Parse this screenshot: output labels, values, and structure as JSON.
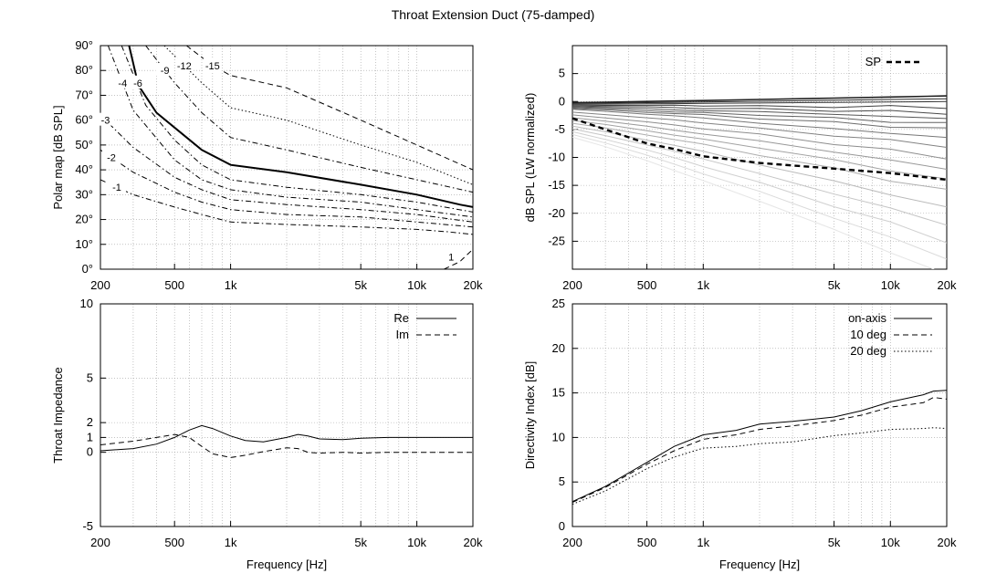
{
  "title": "Throat Extension Duct (75-damped)",
  "colors": {
    "axis": "#000000",
    "grid": "#a0a0a0",
    "series": "#000000"
  },
  "chart_data": [
    {
      "id": "polar",
      "type": "line",
      "subtype": "contour",
      "ylabel": "Polar map [dB SPL]",
      "xlabel": "",
      "xscale": "log",
      "xlim": [
        200,
        20000
      ],
      "ylim": [
        0,
        90
      ],
      "grid": true,
      "xticks": [
        200,
        500,
        1000,
        5000,
        10000,
        20000
      ],
      "xtick_labels": [
        "200",
        "500",
        "1k",
        "5k",
        "10k",
        "20k"
      ],
      "yticks": [
        0,
        10,
        20,
        30,
        40,
        50,
        60,
        70,
        80,
        90
      ],
      "ytick_labels": [
        "0°",
        "10°",
        "20°",
        "30°",
        "40°",
        "50°",
        "60°",
        "70°",
        "80°",
        "90°"
      ],
      "series": [
        {
          "level": "-1",
          "dash": "dashdot",
          "width": 1,
          "points": [
            [
              200,
              36
            ],
            [
              300,
              30
            ],
            [
              500,
              25
            ],
            [
              700,
              22
            ],
            [
              1000,
              19
            ],
            [
              2000,
              18
            ],
            [
              5000,
              17
            ],
            [
              10000,
              16
            ],
            [
              15000,
              15
            ],
            [
              20000,
              14
            ]
          ]
        },
        {
          "level": "-2",
          "dash": "dashdot",
          "width": 1,
          "points": [
            [
              200,
              48
            ],
            [
              300,
              39
            ],
            [
              500,
              31
            ],
            [
              700,
              27
            ],
            [
              1000,
              24
            ],
            [
              2000,
              22
            ],
            [
              5000,
              21
            ],
            [
              10000,
              19
            ],
            [
              20000,
              17
            ]
          ]
        },
        {
          "level": "-3",
          "dash": "dashdot",
          "width": 1,
          "points": [
            [
              200,
              62
            ],
            [
              300,
              49
            ],
            [
              500,
              37
            ],
            [
              700,
              32
            ],
            [
              1000,
              28
            ],
            [
              2000,
              26
            ],
            [
              5000,
              24
            ],
            [
              10000,
              22
            ],
            [
              20000,
              19
            ]
          ]
        },
        {
          "level": "-4",
          "dash": "dashdot",
          "width": 1,
          "points": [
            [
              220,
              90
            ],
            [
              300,
              64
            ],
            [
              500,
              44
            ],
            [
              700,
              36
            ],
            [
              1000,
              32
            ],
            [
              2000,
              29
            ],
            [
              5000,
              27
            ],
            [
              10000,
              24
            ],
            [
              20000,
              21
            ]
          ]
        },
        {
          "level": "-5",
          "dash": "dashdot",
          "width": 1,
          "points": [
            [
              260,
              90
            ],
            [
              350,
              66
            ],
            [
              500,
              52
            ],
            [
              700,
              42
            ],
            [
              1000,
              36
            ],
            [
              2000,
              33
            ],
            [
              5000,
              30
            ],
            [
              10000,
              27
            ],
            [
              20000,
              23
            ]
          ]
        },
        {
          "level": "-6",
          "dash": "solid",
          "width": 2,
          "points": [
            [
              285,
              90
            ],
            [
              320,
              74
            ],
            [
              400,
              63
            ],
            [
              500,
              57
            ],
            [
              700,
              48
            ],
            [
              1000,
              42
            ],
            [
              2000,
              39
            ],
            [
              5000,
              34
            ],
            [
              10000,
              30
            ],
            [
              17000,
              26
            ],
            [
              20000,
              25
            ]
          ]
        },
        {
          "level": "-9",
          "dash": "dashdot",
          "width": 1,
          "points": [
            [
              350,
              90
            ],
            [
              500,
              75
            ],
            [
              700,
              63
            ],
            [
              1000,
              53
            ],
            [
              2000,
              48
            ],
            [
              5000,
              41
            ],
            [
              10000,
              36
            ],
            [
              20000,
              31
            ]
          ]
        },
        {
          "level": "-12",
          "dash": "dotted",
          "width": 1,
          "points": [
            [
              440,
              90
            ],
            [
              700,
              75
            ],
            [
              1000,
              65
            ],
            [
              2000,
              60
            ],
            [
              5000,
              50
            ],
            [
              10000,
              43
            ],
            [
              20000,
              34
            ]
          ]
        },
        {
          "level": "-15",
          "dash": "dashed",
          "width": 1,
          "points": [
            [
              580,
              90
            ],
            [
              800,
              82
            ],
            [
              1000,
              78
            ],
            [
              2000,
              73
            ],
            [
              5000,
              60
            ],
            [
              10000,
              50
            ],
            [
              20000,
              40
            ]
          ]
        },
        {
          "level": "1",
          "dash": "dashed",
          "width": 1,
          "points": [
            [
              14000,
              0
            ],
            [
              17000,
              3
            ],
            [
              20000,
              8
            ]
          ]
        }
      ]
    },
    {
      "id": "spl",
      "type": "line",
      "ylabel": "dB SPL (LW normalized)",
      "xlabel": "",
      "xscale": "log",
      "xlim": [
        200,
        20000
      ],
      "ylim": [
        -30,
        10
      ],
      "grid": true,
      "xticks": [
        200,
        500,
        1000,
        5000,
        10000,
        20000
      ],
      "xtick_labels": [
        "200",
        "500",
        "1k",
        "5k",
        "10k",
        "20k"
      ],
      "yticks": [
        -25,
        -20,
        -15,
        -10,
        -5,
        0,
        5
      ],
      "ytick_labels": [
        "-25",
        "-20",
        "-15",
        "-10",
        "-5",
        "0",
        "5"
      ],
      "legend": [
        {
          "label": "SP",
          "dash": "dashed"
        }
      ],
      "legend_position": "top-right",
      "x": [
        200,
        300,
        500,
        700,
        1000,
        2000,
        5000,
        10000,
        20000
      ],
      "sp_values": [
        -3,
        -5,
        -7.5,
        -8.5,
        -9.8,
        -11,
        -12,
        -12.8,
        -14
      ],
      "fan_endpoints": [
        1,
        0.5,
        0,
        -1,
        -2,
        -3,
        -4,
        -5,
        -6.5,
        -8,
        -10,
        -12,
        -14,
        -16,
        -19,
        -22,
        -25,
        -28,
        -31
      ]
    },
    {
      "id": "impedance",
      "type": "line",
      "ylabel": "Throat Impedance",
      "xlabel": "Frequency [Hz]",
      "xscale": "log",
      "xlim": [
        200,
        20000
      ],
      "ylim": [
        -5,
        10
      ],
      "grid": true,
      "xticks": [
        200,
        500,
        1000,
        5000,
        10000,
        20000
      ],
      "xtick_labels": [
        "200",
        "500",
        "1k",
        "5k",
        "10k",
        "20k"
      ],
      "yticks": [
        -5,
        0,
        1,
        2,
        5,
        10
      ],
      "ytick_labels": [
        "-5",
        "0",
        "1",
        "2",
        "5",
        "10"
      ],
      "legend_position": "top-right",
      "series": [
        {
          "name": "Re",
          "dash": "solid",
          "x": [
            200,
            300,
            400,
            500,
            600,
            700,
            800,
            1000,
            1200,
            1500,
            2000,
            2300,
            2600,
            3000,
            4000,
            5000,
            7000,
            10000,
            15000,
            20000
          ],
          "values": [
            0.1,
            0.25,
            0.55,
            1.0,
            1.5,
            1.8,
            1.6,
            1.1,
            0.8,
            0.7,
            1.0,
            1.2,
            1.1,
            0.9,
            0.85,
            0.95,
            1.0,
            1.0,
            1.0,
            1.0
          ]
        },
        {
          "name": "Im",
          "dash": "dashed",
          "x": [
            200,
            300,
            400,
            500,
            600,
            700,
            800,
            1000,
            1200,
            1500,
            2000,
            2300,
            2600,
            3000,
            4000,
            5000,
            7000,
            10000,
            15000,
            20000
          ],
          "values": [
            0.5,
            0.75,
            1.0,
            1.2,
            1.0,
            0.4,
            -0.1,
            -0.35,
            -0.2,
            0.05,
            0.3,
            0.25,
            0.0,
            -0.05,
            0.0,
            -0.05,
            0.0,
            0.0,
            0.0,
            0.0
          ]
        }
      ]
    },
    {
      "id": "di",
      "type": "line",
      "ylabel": "Directivity Index [dB]",
      "xlabel": "Frequency [Hz]",
      "xscale": "log",
      "xlim": [
        200,
        20000
      ],
      "ylim": [
        0,
        25
      ],
      "grid": true,
      "xticks": [
        200,
        500,
        1000,
        5000,
        10000,
        20000
      ],
      "xtick_labels": [
        "200",
        "500",
        "1k",
        "5k",
        "10k",
        "20k"
      ],
      "yticks": [
        0,
        5,
        10,
        15,
        20,
        25
      ],
      "ytick_labels": [
        "0",
        "5",
        "10",
        "15",
        "20",
        "25"
      ],
      "legend_position": "top-right",
      "series": [
        {
          "name": "on-axis",
          "dash": "solid",
          "x": [
            200,
            300,
            500,
            700,
            1000,
            1500,
            2000,
            3000,
            5000,
            7000,
            10000,
            15000,
            17000,
            20000
          ],
          "values": [
            2.8,
            4.5,
            7.2,
            9,
            10.3,
            10.8,
            11.5,
            11.8,
            12.3,
            13,
            14,
            14.8,
            15.2,
            15.3
          ]
        },
        {
          "name": "10 deg",
          "dash": "dashed",
          "x": [
            200,
            300,
            500,
            700,
            1000,
            1500,
            2000,
            3000,
            5000,
            7000,
            10000,
            15000,
            17000,
            20000
          ],
          "values": [
            2.7,
            4.4,
            7.0,
            8.5,
            9.8,
            10.3,
            10.9,
            11.3,
            11.9,
            12.5,
            13.4,
            13.9,
            14.5,
            14.3
          ]
        },
        {
          "name": "20 deg",
          "dash": "dotted",
          "x": [
            200,
            300,
            500,
            700,
            1000,
            1500,
            2000,
            3000,
            5000,
            7000,
            10000,
            15000,
            17000,
            20000
          ],
          "values": [
            2.5,
            4.0,
            6.5,
            7.8,
            8.8,
            9.0,
            9.3,
            9.5,
            10.2,
            10.5,
            10.9,
            11.0,
            11.1,
            11.0
          ]
        }
      ]
    }
  ]
}
